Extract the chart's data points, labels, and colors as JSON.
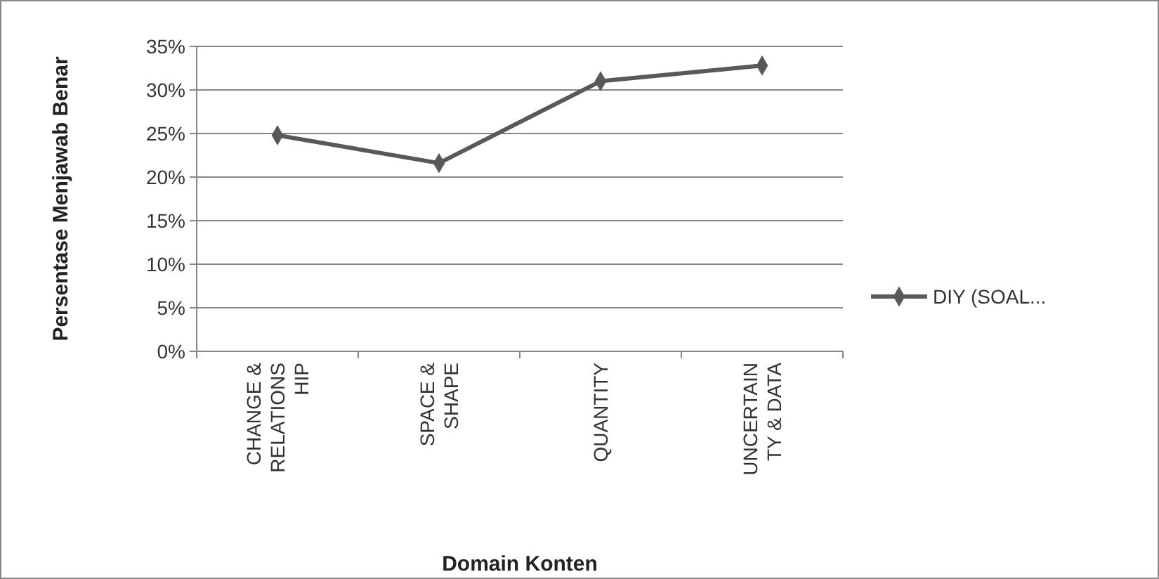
{
  "chart_data": {
    "type": "line",
    "xlabel": "Domain Konten",
    "ylabel": "Persentase Menjawab Benar",
    "categories": [
      "CHANGE &\nRELATIONS\nHIP",
      "SPACE &\nSHAPE",
      "QUANTITY",
      "UNCERTAIN\nTY & DATA"
    ],
    "series": [
      {
        "name": "DIY (SOAL...",
        "color": "#595959",
        "values": [
          24.8,
          21.6,
          31.0,
          32.8
        ]
      }
    ],
    "ylim": [
      0,
      35
    ],
    "yticks": [
      {
        "value": 0,
        "label": "0%"
      },
      {
        "value": 5,
        "label": "5%"
      },
      {
        "value": 10,
        "label": "10%"
      },
      {
        "value": 15,
        "label": "15%"
      },
      {
        "value": 20,
        "label": "20%"
      },
      {
        "value": 25,
        "label": "25%"
      },
      {
        "value": 30,
        "label": "30%"
      },
      {
        "value": 35,
        "label": "35%"
      }
    ],
    "grid": "y",
    "legend": "right",
    "marker": "diamond",
    "line_style": "solid"
  }
}
